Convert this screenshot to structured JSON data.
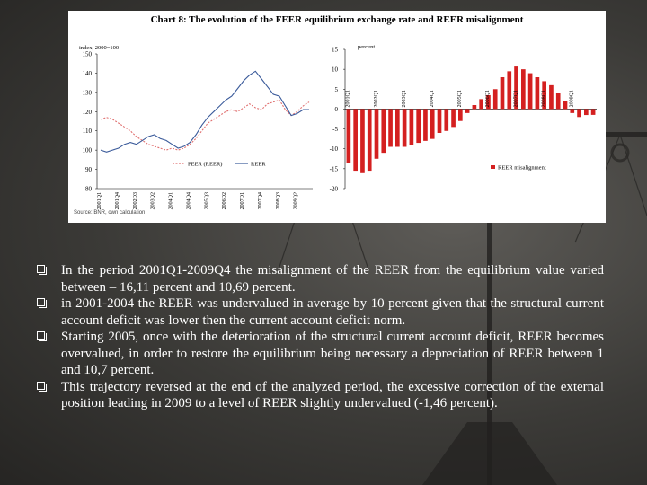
{
  "chart_data": [
    {
      "type": "line",
      "title": "Chart 8: The evolution of the FEER equilibrium exchange rate and REER misalignment",
      "unit_label": "index, 2000=100",
      "ylim": [
        80,
        150
      ],
      "yticks": [
        80,
        90,
        100,
        110,
        120,
        130,
        140,
        150
      ],
      "x": [
        "2001Q1",
        "2001Q2",
        "2001Q3",
        "2001Q4",
        "2002Q1",
        "2002Q2",
        "2002Q3",
        "2002Q4",
        "2003Q1",
        "2003Q2",
        "2003Q3",
        "2003Q4",
        "2004Q1",
        "2004Q2",
        "2004Q3",
        "2004Q4",
        "2005Q1",
        "2005Q2",
        "2005Q3",
        "2005Q4",
        "2006Q1",
        "2006Q2",
        "2006Q3",
        "2006Q4",
        "2007Q1",
        "2007Q2",
        "2007Q3",
        "2007Q4",
        "2008Q1",
        "2008Q2",
        "2008Q3",
        "2008Q4",
        "2009Q1",
        "2009Q2",
        "2009Q3",
        "2009Q4"
      ],
      "xtick_labels": [
        "2001Q1",
        "2001Q4",
        "2002Q3",
        "2003Q2",
        "2004Q1",
        "2004Q4",
        "2005Q3",
        "2006Q2",
        "2007Q1",
        "2007Q4",
        "2008Q3",
        "2009Q2"
      ],
      "series": [
        {
          "name": "FEER (REER)",
          "color": "#e07070",
          "style": "dashed",
          "values": [
            116,
            117,
            116,
            114,
            112,
            110,
            107,
            105,
            103,
            102,
            101,
            100,
            101,
            100,
            101,
            103,
            106,
            110,
            114,
            116,
            118,
            120,
            121,
            120,
            122,
            124,
            122,
            121,
            124,
            125,
            126,
            121,
            118,
            120,
            123,
            125
          ]
        },
        {
          "name": "REER",
          "color": "#3a5a9a",
          "style": "solid",
          "values": [
            100,
            99,
            100,
            101,
            103,
            104,
            103,
            105,
            107,
            108,
            106,
            105,
            103,
            101,
            102,
            104,
            108,
            113,
            117,
            120,
            123,
            126,
            128,
            132,
            136,
            139,
            141,
            137,
            133,
            129,
            128,
            123,
            118,
            119,
            121,
            121
          ]
        }
      ],
      "legend": "bottom-right"
    },
    {
      "type": "bar",
      "unit_label": "percent",
      "ylim": [
        -20,
        15
      ],
      "yticks": [
        15,
        10,
        5,
        0,
        -5,
        -10,
        -15,
        -20
      ],
      "category_labels": [
        "2001Q1",
        "2002Q1",
        "2003Q1",
        "2004Q1",
        "2005Q1",
        "2006Q1",
        "2007Q1",
        "2008Q1",
        "2009Q1"
      ],
      "categories": [
        "2001Q1",
        "2001Q2",
        "2001Q3",
        "2001Q4",
        "2002Q1",
        "2002Q2",
        "2002Q3",
        "2002Q4",
        "2003Q1",
        "2003Q2",
        "2003Q3",
        "2003Q4",
        "2004Q1",
        "2004Q2",
        "2004Q3",
        "2004Q4",
        "2005Q1",
        "2005Q2",
        "2005Q3",
        "2005Q4",
        "2006Q1",
        "2006Q2",
        "2006Q3",
        "2006Q4",
        "2007Q1",
        "2007Q2",
        "2007Q3",
        "2007Q4",
        "2008Q1",
        "2008Q2",
        "2008Q3",
        "2008Q4",
        "2009Q1",
        "2009Q2",
        "2009Q3",
        "2009Q4"
      ],
      "series": [
        {
          "name": "REER misalignment",
          "color": "#d42020",
          "values": [
            -13.5,
            -15.5,
            -16.11,
            -15.5,
            -12.5,
            -11,
            -9.5,
            -9.5,
            -9.5,
            -9,
            -8.5,
            -8,
            -7.5,
            -6,
            -5.5,
            -4.5,
            -3,
            -1,
            1,
            2.5,
            3.5,
            5,
            8,
            9.5,
            10.69,
            10,
            9,
            8,
            7,
            6,
            4,
            2,
            -1,
            -2,
            -1.5,
            -1.46
          ]
        }
      ],
      "legend": "bottom-right"
    }
  ],
  "source_note": "Source: BNR, own calculation",
  "bullets": [
    "In the period 2001Q1-2009Q4 the misalignment of the REER from the equilibrium value varied between – 16,11 percent and 10,69 percent.",
    "in 2001-2004 the REER was undervalued in average by 10 percent given that the structural current account deficit was lower then the current account deficit norm.",
    "Starting 2005, once with the deterioration of the structural current account deficit, REER becomes overvalued, in order to restore the equilibrium being necessary a depreciation of REER between 1 and 10,7 percent.",
    "This trajectory reversed at the end of the analyzed period, the excessive correction of the external position leading in 2009 to a level of REER slightly undervalued (-1,46 percent)."
  ]
}
